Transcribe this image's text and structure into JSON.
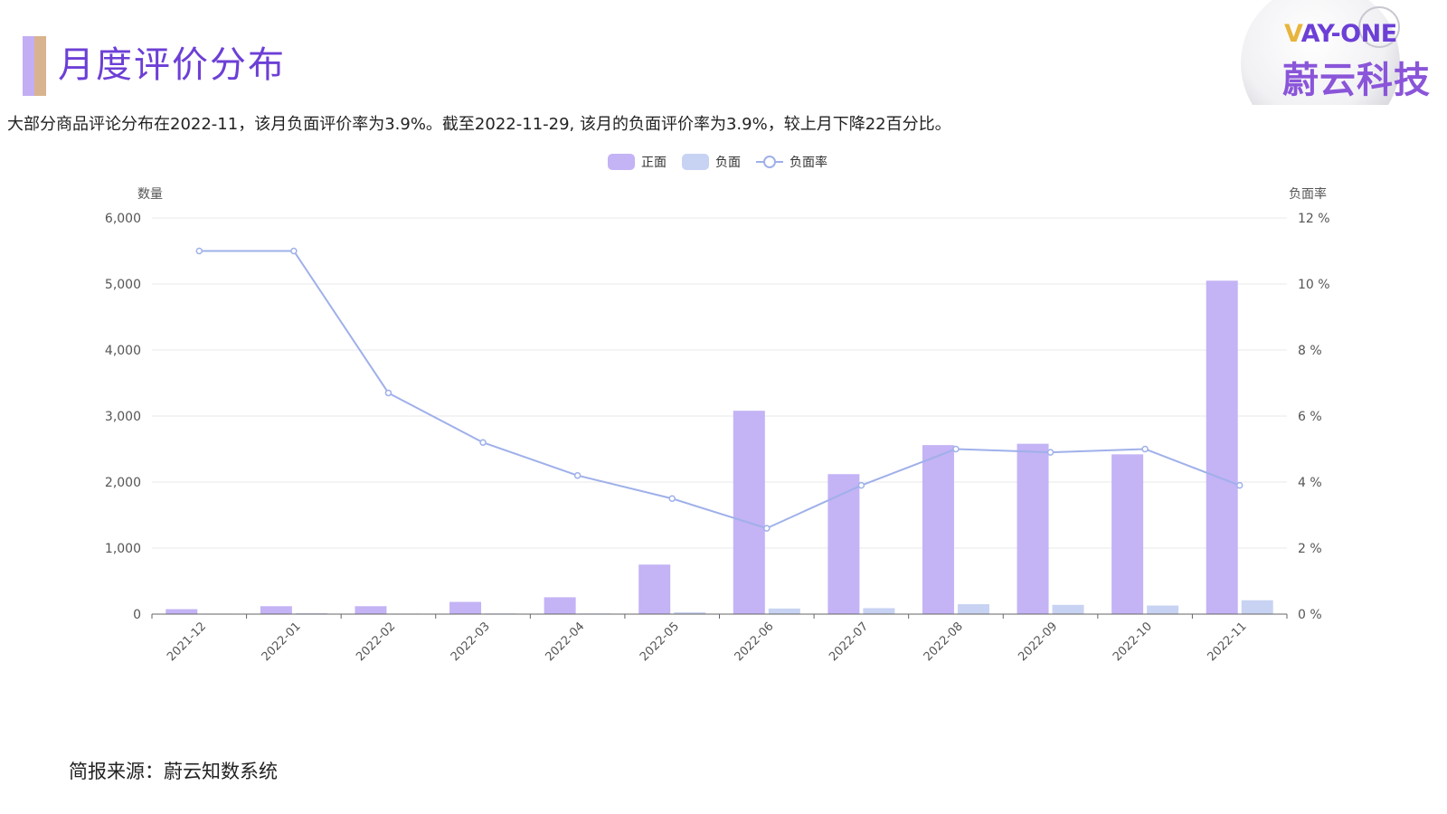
{
  "header": {
    "title": "月度评价分布",
    "summary": "大部分商品评论分布在2022-11，该月负面评价率为3.9%。截至2022-11-29, 该月的负面评价率为3.9%，较上月下降22百分比。"
  },
  "logo": {
    "en_first": "V",
    "en_rest": "AY-ONE",
    "cn": "蔚云科技"
  },
  "footer": {
    "source": "简报来源：蔚云知数系统"
  },
  "colors": {
    "positive": "#c4b3f5",
    "negative": "#c8d3f3",
    "rate_line": "#9fb0ea",
    "title": "#6c3fd6",
    "grid": "#e8e8e8",
    "axis_text": "#555555"
  },
  "chart_data": {
    "type": "bar",
    "legend_position": "top-center",
    "categories": [
      "2021-12",
      "2022-01",
      "2022-02",
      "2022-03",
      "2022-04",
      "2022-05",
      "2022-06",
      "2022-07",
      "2022-08",
      "2022-09",
      "2022-10",
      "2022-11"
    ],
    "series": [
      {
        "name": "正面",
        "type": "bar",
        "axis": "left",
        "values": [
          75,
          120,
          120,
          185,
          255,
          750,
          3080,
          2120,
          2560,
          2580,
          2420,
          5050
        ]
      },
      {
        "name": "负面",
        "type": "bar",
        "axis": "left",
        "values": [
          8,
          15,
          8,
          10,
          10,
          28,
          85,
          90,
          150,
          140,
          130,
          210
        ]
      },
      {
        "name": "负面率",
        "type": "line",
        "axis": "right",
        "values": [
          11.0,
          11.0,
          6.7,
          5.2,
          4.2,
          3.5,
          2.6,
          3.9,
          5.0,
          4.9,
          5.0,
          3.9
        ]
      }
    ],
    "ylabel_left": "数量",
    "ylabel_right": "负面率",
    "ylim_left": [
      0,
      6000
    ],
    "ylim_right": [
      0,
      12
    ],
    "yticks_left": [
      "0",
      "1,000",
      "2,000",
      "3,000",
      "4,000",
      "5,000",
      "6,000"
    ],
    "yticks_right": [
      "0 %",
      "2 %",
      "4 %",
      "6 %",
      "8 %",
      "10 %",
      "12 %"
    ],
    "grid": true
  }
}
